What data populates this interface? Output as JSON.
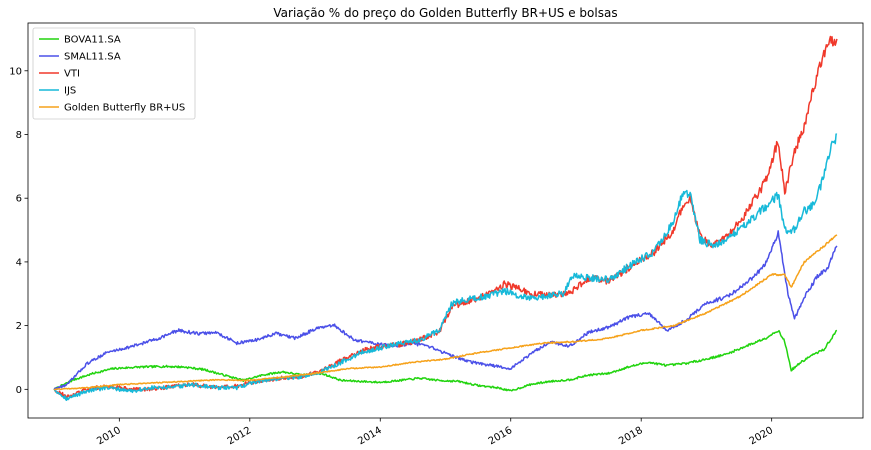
{
  "chart_data": {
    "type": "line",
    "title": "Variação % do preço do Golden Butterfly BR+US e bolsas",
    "xlabel": "",
    "ylabel": "",
    "xlim": [
      2008.6,
      2021.4
    ],
    "ylim": [
      -0.9,
      11.5
    ],
    "x_ticks": [
      2010,
      2012,
      2014,
      2016,
      2018,
      2020
    ],
    "x_tick_labels": [
      "2010",
      "2012",
      "2014",
      "2016",
      "2018",
      "2020"
    ],
    "y_ticks": [
      0,
      2,
      4,
      6,
      8,
      10
    ],
    "y_tick_labels": [
      "0",
      "2",
      "4",
      "6",
      "8",
      "10"
    ],
    "grid": false,
    "legend_position": "upper-left",
    "series": [
      {
        "name": "BOVA11.SA",
        "color": "#22d40f",
        "points": [
          [
            2009.0,
            0.0
          ],
          [
            2009.3,
            0.3
          ],
          [
            2009.6,
            0.5
          ],
          [
            2009.9,
            0.65
          ],
          [
            2010.3,
            0.7
          ],
          [
            2010.7,
            0.72
          ],
          [
            2011.0,
            0.7
          ],
          [
            2011.3,
            0.62
          ],
          [
            2011.6,
            0.45
          ],
          [
            2011.9,
            0.28
          ],
          [
            2012.2,
            0.45
          ],
          [
            2012.5,
            0.55
          ],
          [
            2012.8,
            0.45
          ],
          [
            2013.1,
            0.5
          ],
          [
            2013.4,
            0.28
          ],
          [
            2013.7,
            0.25
          ],
          [
            2014.0,
            0.22
          ],
          [
            2014.3,
            0.28
          ],
          [
            2014.6,
            0.35
          ],
          [
            2014.9,
            0.28
          ],
          [
            2015.2,
            0.25
          ],
          [
            2015.5,
            0.12
          ],
          [
            2015.8,
            0.05
          ],
          [
            2016.0,
            -0.05
          ],
          [
            2016.3,
            0.15
          ],
          [
            2016.6,
            0.25
          ],
          [
            2016.9,
            0.3
          ],
          [
            2017.2,
            0.45
          ],
          [
            2017.5,
            0.5
          ],
          [
            2017.8,
            0.7
          ],
          [
            2018.1,
            0.85
          ],
          [
            2018.4,
            0.75
          ],
          [
            2018.7,
            0.82
          ],
          [
            2019.0,
            0.95
          ],
          [
            2019.3,
            1.1
          ],
          [
            2019.6,
            1.35
          ],
          [
            2019.9,
            1.6
          ],
          [
            2020.1,
            1.85
          ],
          [
            2020.2,
            1.5
          ],
          [
            2020.3,
            0.6
          ],
          [
            2020.45,
            0.85
          ],
          [
            2020.6,
            1.05
          ],
          [
            2020.8,
            1.25
          ],
          [
            2020.9,
            1.55
          ],
          [
            2021.0,
            1.85
          ]
        ]
      },
      {
        "name": "SMAL11.SA",
        "color": "#4b50e8",
        "points": [
          [
            2009.0,
            0.0
          ],
          [
            2009.2,
            0.15
          ],
          [
            2009.5,
            0.8
          ],
          [
            2009.8,
            1.15
          ],
          [
            2010.2,
            1.35
          ],
          [
            2010.6,
            1.6
          ],
          [
            2010.9,
            1.85
          ],
          [
            2011.2,
            1.75
          ],
          [
            2011.5,
            1.78
          ],
          [
            2011.8,
            1.45
          ],
          [
            2012.1,
            1.55
          ],
          [
            2012.4,
            1.75
          ],
          [
            2012.7,
            1.6
          ],
          [
            2013.0,
            1.9
          ],
          [
            2013.3,
            2.0
          ],
          [
            2013.6,
            1.55
          ],
          [
            2013.9,
            1.45
          ],
          [
            2014.2,
            1.35
          ],
          [
            2014.5,
            1.45
          ],
          [
            2014.8,
            1.3
          ],
          [
            2015.1,
            1.05
          ],
          [
            2015.4,
            0.85
          ],
          [
            2015.7,
            0.75
          ],
          [
            2016.0,
            0.65
          ],
          [
            2016.3,
            1.1
          ],
          [
            2016.6,
            1.5
          ],
          [
            2016.9,
            1.35
          ],
          [
            2017.2,
            1.8
          ],
          [
            2017.5,
            1.95
          ],
          [
            2017.8,
            2.25
          ],
          [
            2018.1,
            2.4
          ],
          [
            2018.4,
            1.85
          ],
          [
            2018.7,
            2.2
          ],
          [
            2019.0,
            2.7
          ],
          [
            2019.3,
            2.9
          ],
          [
            2019.6,
            3.3
          ],
          [
            2019.9,
            3.9
          ],
          [
            2020.1,
            4.9
          ],
          [
            2020.25,
            3.0
          ],
          [
            2020.35,
            2.2
          ],
          [
            2020.5,
            2.9
          ],
          [
            2020.7,
            3.55
          ],
          [
            2020.85,
            3.8
          ],
          [
            2021.0,
            4.5
          ]
        ]
      },
      {
        "name": "VTI",
        "color": "#f0392b",
        "points": [
          [
            2009.0,
            0.0
          ],
          [
            2009.2,
            -0.25
          ],
          [
            2009.5,
            0.0
          ],
          [
            2009.8,
            0.1
          ],
          [
            2010.2,
            0.0
          ],
          [
            2010.5,
            0.0
          ],
          [
            2010.8,
            0.1
          ],
          [
            2011.1,
            0.15
          ],
          [
            2011.5,
            0.05
          ],
          [
            2011.8,
            0.1
          ],
          [
            2012.1,
            0.25
          ],
          [
            2012.5,
            0.35
          ],
          [
            2012.8,
            0.4
          ],
          [
            2013.1,
            0.6
          ],
          [
            2013.4,
            0.9
          ],
          [
            2013.7,
            1.2
          ],
          [
            2014.0,
            1.35
          ],
          [
            2014.3,
            1.4
          ],
          [
            2014.6,
            1.55
          ],
          [
            2014.9,
            1.8
          ],
          [
            2015.1,
            2.6
          ],
          [
            2015.4,
            2.8
          ],
          [
            2015.7,
            3.0
          ],
          [
            2015.9,
            3.3
          ],
          [
            2016.1,
            3.2
          ],
          [
            2016.3,
            3.0
          ],
          [
            2016.6,
            2.95
          ],
          [
            2016.8,
            3.0
          ],
          [
            2016.95,
            3.1
          ],
          [
            2017.2,
            3.5
          ],
          [
            2017.5,
            3.4
          ],
          [
            2017.8,
            3.8
          ],
          [
            2018.0,
            4.1
          ],
          [
            2018.2,
            4.3
          ],
          [
            2018.5,
            5.0
          ],
          [
            2018.65,
            5.8
          ],
          [
            2018.75,
            6.0
          ],
          [
            2018.9,
            4.8
          ],
          [
            2019.1,
            4.5
          ],
          [
            2019.3,
            4.8
          ],
          [
            2019.6,
            5.5
          ],
          [
            2019.9,
            6.5
          ],
          [
            2020.1,
            7.8
          ],
          [
            2020.2,
            6.2
          ],
          [
            2020.35,
            7.5
          ],
          [
            2020.5,
            8.2
          ],
          [
            2020.65,
            9.5
          ],
          [
            2020.8,
            10.5
          ],
          [
            2020.9,
            10.9
          ],
          [
            2021.0,
            11.0
          ]
        ]
      },
      {
        "name": "IJS",
        "color": "#17b9d9",
        "points": [
          [
            2009.0,
            0.0
          ],
          [
            2009.2,
            -0.3
          ],
          [
            2009.5,
            -0.05
          ],
          [
            2009.8,
            0.05
          ],
          [
            2010.2,
            -0.05
          ],
          [
            2010.5,
            0.05
          ],
          [
            2010.8,
            0.05
          ],
          [
            2011.1,
            0.15
          ],
          [
            2011.5,
            0.05
          ],
          [
            2011.8,
            0.05
          ],
          [
            2012.1,
            0.25
          ],
          [
            2012.5,
            0.35
          ],
          [
            2012.8,
            0.4
          ],
          [
            2013.1,
            0.55
          ],
          [
            2013.4,
            0.85
          ],
          [
            2013.7,
            1.15
          ],
          [
            2014.0,
            1.3
          ],
          [
            2014.3,
            1.45
          ],
          [
            2014.6,
            1.55
          ],
          [
            2014.9,
            1.85
          ],
          [
            2015.1,
            2.7
          ],
          [
            2015.4,
            2.85
          ],
          [
            2015.7,
            2.95
          ],
          [
            2015.9,
            3.1
          ],
          [
            2016.1,
            2.95
          ],
          [
            2016.3,
            2.85
          ],
          [
            2016.6,
            2.95
          ],
          [
            2016.8,
            3.0
          ],
          [
            2016.95,
            3.6
          ],
          [
            2017.2,
            3.5
          ],
          [
            2017.5,
            3.45
          ],
          [
            2017.8,
            3.85
          ],
          [
            2018.0,
            4.1
          ],
          [
            2018.2,
            4.3
          ],
          [
            2018.5,
            5.3
          ],
          [
            2018.65,
            6.25
          ],
          [
            2018.75,
            6.1
          ],
          [
            2018.9,
            4.7
          ],
          [
            2019.1,
            4.5
          ],
          [
            2019.3,
            4.65
          ],
          [
            2019.6,
            5.2
          ],
          [
            2019.9,
            5.7
          ],
          [
            2020.1,
            6.1
          ],
          [
            2020.2,
            5.0
          ],
          [
            2020.35,
            5.0
          ],
          [
            2020.5,
            5.6
          ],
          [
            2020.65,
            5.8
          ],
          [
            2020.8,
            6.7
          ],
          [
            2020.9,
            7.5
          ],
          [
            2021.0,
            8.0
          ]
        ]
      },
      {
        "name": "Golden Butterfly BR+US",
        "color": "#f6a21b",
        "points": [
          [
            2009.0,
            0.0
          ],
          [
            2009.5,
            0.05
          ],
          [
            2010.0,
            0.15
          ],
          [
            2010.5,
            0.2
          ],
          [
            2011.0,
            0.25
          ],
          [
            2011.5,
            0.3
          ],
          [
            2012.0,
            0.28
          ],
          [
            2012.5,
            0.38
          ],
          [
            2013.0,
            0.5
          ],
          [
            2013.5,
            0.65
          ],
          [
            2014.0,
            0.7
          ],
          [
            2014.5,
            0.85
          ],
          [
            2015.0,
            0.95
          ],
          [
            2015.5,
            1.15
          ],
          [
            2016.0,
            1.3
          ],
          [
            2016.5,
            1.45
          ],
          [
            2017.0,
            1.5
          ],
          [
            2017.5,
            1.6
          ],
          [
            2018.0,
            1.85
          ],
          [
            2018.5,
            2.0
          ],
          [
            2019.0,
            2.4
          ],
          [
            2019.5,
            2.9
          ],
          [
            2020.0,
            3.6
          ],
          [
            2020.2,
            3.6
          ],
          [
            2020.3,
            3.2
          ],
          [
            2020.5,
            4.0
          ],
          [
            2020.8,
            4.5
          ],
          [
            2021.0,
            4.85
          ]
        ]
      }
    ]
  }
}
